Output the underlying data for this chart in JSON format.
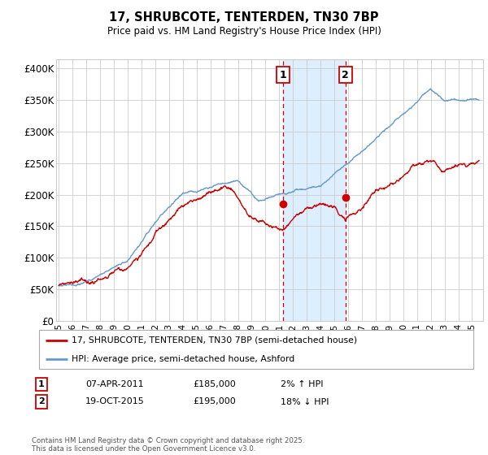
{
  "title": "17, SHRUBCOTE, TENTERDEN, TN30 7BP",
  "subtitle": "Price paid vs. HM Land Registry's House Price Index (HPI)",
  "ylabel_ticks": [
    "£0",
    "£50K",
    "£100K",
    "£150K",
    "£200K",
    "£250K",
    "£300K",
    "£350K",
    "£400K"
  ],
  "ytick_values": [
    0,
    50000,
    100000,
    150000,
    200000,
    250000,
    300000,
    350000,
    400000
  ],
  "ylim": [
    0,
    415000
  ],
  "xlim_start": 1994.8,
  "xlim_end": 2025.8,
  "xtick_years": [
    1995,
    1996,
    1997,
    1998,
    1999,
    2000,
    2001,
    2002,
    2003,
    2004,
    2005,
    2006,
    2007,
    2008,
    2009,
    2010,
    2011,
    2012,
    2013,
    2014,
    2015,
    2016,
    2017,
    2018,
    2019,
    2020,
    2021,
    2022,
    2023,
    2024,
    2025
  ],
  "purchase1_x": 2011.27,
  "purchase1_price": 185000,
  "purchase2_x": 2015.8,
  "purchase2_price": 195000,
  "shade_x1": 2011.27,
  "shade_x2": 2015.8,
  "red_line_color": "#cc0000",
  "blue_line_color": "#6699cc",
  "shade_color": "#ddeeff",
  "dashed_color": "#cc0000",
  "grid_color": "#cccccc",
  "legend1": "17, SHRUBCOTE, TENTERDEN, TN30 7BP (semi-detached house)",
  "legend2": "HPI: Average price, semi-detached house, Ashford",
  "footer": "Contains HM Land Registry data © Crown copyright and database right 2025.\nThis data is licensed under the Open Government Licence v3.0.",
  "background_color": "#ffffff",
  "table_row1": [
    "1",
    "07-APR-2011",
    "£185,000",
    "2% ↑ HPI"
  ],
  "table_row2": [
    "2",
    "19-OCT-2015",
    "£195,000",
    "18% ↓ HPI"
  ]
}
